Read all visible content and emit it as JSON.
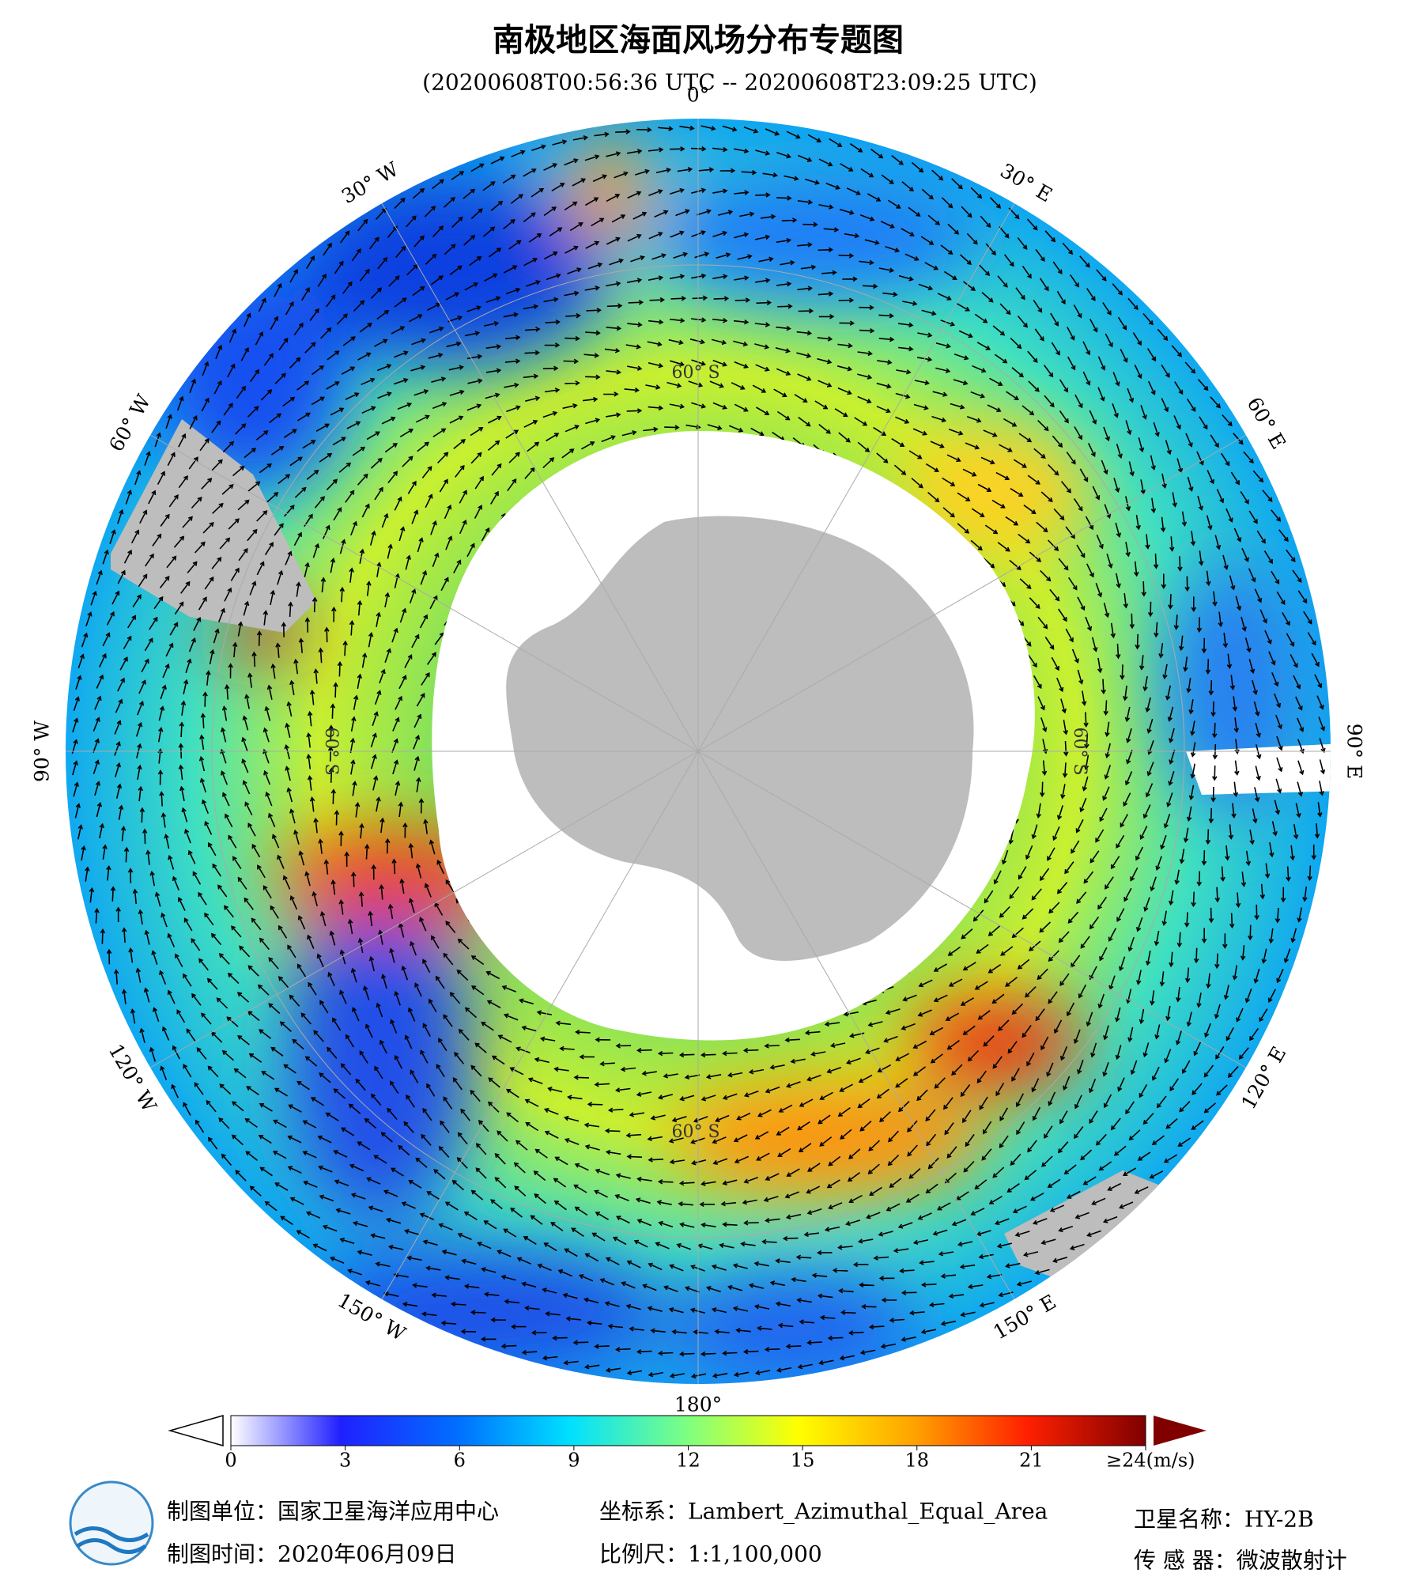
{
  "title": "南极地区海面风场分布专题图",
  "subtitle": "(20200608T00:56:36 UTC -- 20200608T23:09:25 UTC)",
  "map": {
    "longitude_labels": [
      "0°",
      "30° E",
      "60° E",
      "90° E",
      "120° E",
      "150° E",
      "180°",
      "150° W",
      "120° W",
      "90° W",
      "60° W",
      "30° W"
    ],
    "latitude_labels": [
      "60° S",
      "60° S",
      "60° S",
      "60° S"
    ]
  },
  "colorbar": {
    "min": 0,
    "max": 24,
    "ticks": [
      0,
      3,
      6,
      9,
      12,
      15,
      18,
      21,
      {
        "value": 24,
        "label": "≥24(m/s)"
      }
    ]
  },
  "footer": {
    "unit": "制图单位：国家卫星海洋应用中心",
    "date": "制图时间：2020年06月09日",
    "projection": "坐标系：Lambert_Azimuthal_Equal_Area",
    "scale": "比例尺：1:1,100,000",
    "satellite": "卫星名称：HY-2B",
    "sensor": "传 感 器：微波散射计"
  }
}
